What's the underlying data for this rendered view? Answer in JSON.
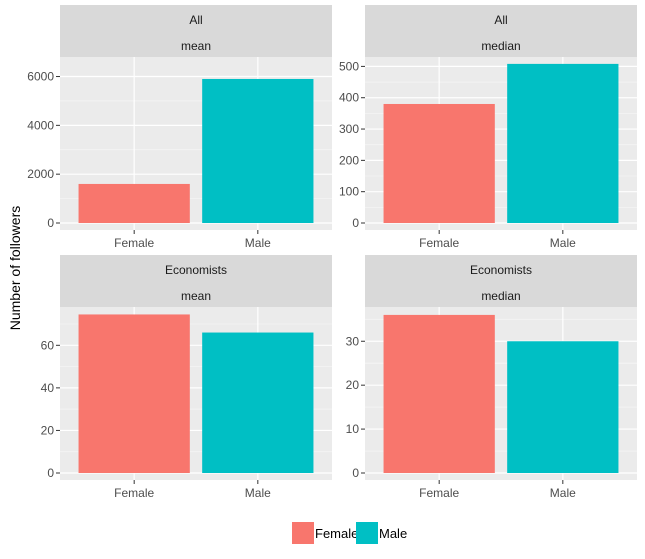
{
  "chart_data": {
    "type": "bar",
    "ylabel": "Number of followers",
    "xlabel": "",
    "categories": [
      "Female",
      "Male"
    ],
    "colors": {
      "Female": "#F8766D",
      "Male": "#00BFC4"
    },
    "legend": {
      "position": "bottom",
      "entries": [
        "Female",
        "Male"
      ]
    },
    "grid": true,
    "panels": [
      {
        "strip_top": "All",
        "strip_bottom": "mean",
        "values": [
          1600,
          5900
        ],
        "ylim": [
          0,
          6800
        ],
        "yticks": [
          0,
          2000,
          4000,
          6000
        ],
        "ytick_labels": [
          "0",
          "2000",
          "4000",
          "6000"
        ]
      },
      {
        "strip_top": "All",
        "strip_bottom": "median",
        "values": [
          380,
          508
        ],
        "ylim": [
          0,
          530
        ],
        "yticks": [
          0,
          100,
          200,
          300,
          400,
          500
        ],
        "ytick_labels": [
          "0",
          "100",
          "200",
          "300",
          "400",
          "500"
        ]
      },
      {
        "strip_top": "Economists",
        "strip_bottom": "mean",
        "values": [
          74.5,
          66
        ],
        "ylim": [
          0,
          78
        ],
        "yticks": [
          0,
          20,
          40,
          60
        ],
        "ytick_labels": [
          "0",
          "20",
          "40",
          "60"
        ]
      },
      {
        "strip_top": "Economists",
        "strip_bottom": "median",
        "values": [
          36,
          30
        ],
        "ylim": [
          0,
          37.8
        ],
        "yticks": [
          0,
          10,
          20,
          30
        ],
        "ytick_labels": [
          "0",
          "10",
          "20",
          "30"
        ]
      }
    ]
  }
}
